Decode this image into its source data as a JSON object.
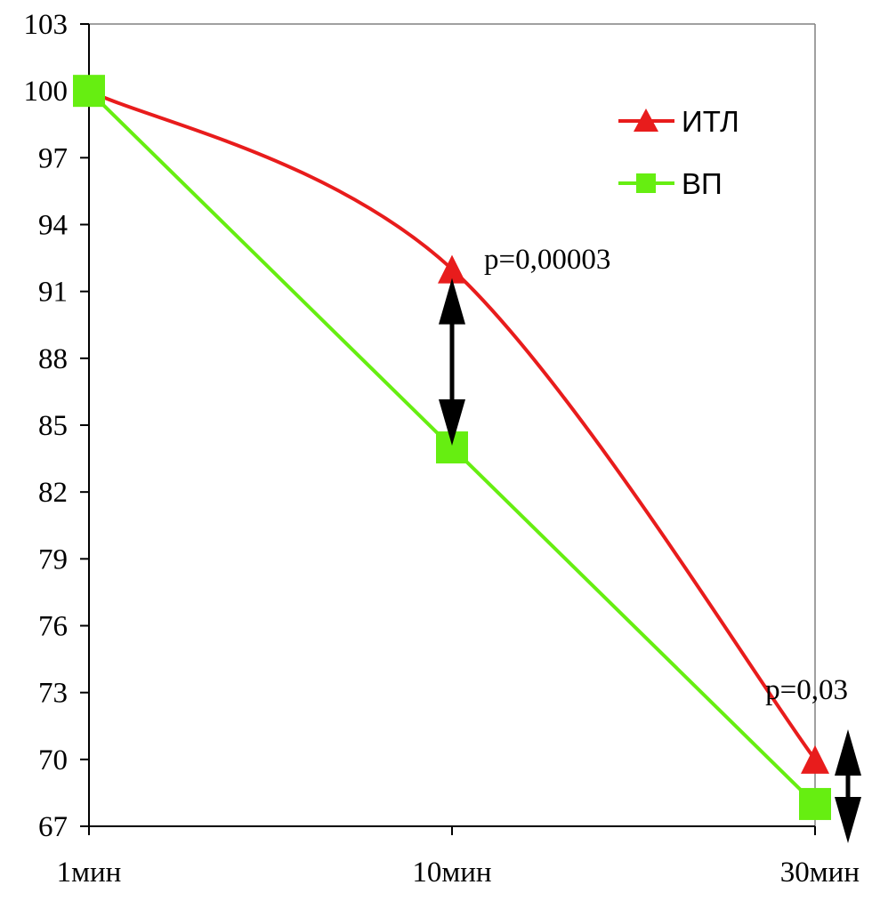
{
  "chart_data": {
    "type": "line",
    "categories": [
      "1мин",
      "10мин",
      "30мин"
    ],
    "ylim": [
      67,
      103
    ],
    "yticks": [
      67,
      70,
      73,
      76,
      79,
      82,
      85,
      88,
      91,
      94,
      97,
      100,
      103
    ],
    "grid": false,
    "legend_position": "top-right",
    "series": [
      {
        "name": "ИТЛ",
        "values": [
          100,
          92,
          70
        ],
        "color": "#e81c1c",
        "marker": "triangle",
        "smooth": true
      },
      {
        "name": "ВП",
        "values": [
          100,
          84,
          68
        ],
        "color": "#66ee11",
        "marker": "square",
        "smooth": false
      }
    ],
    "annotations": [
      {
        "text": "p=0,00003",
        "category": "10мин",
        "range": [
          84,
          92
        ]
      },
      {
        "text": "p=0,03",
        "category": "30мин",
        "range": [
          68,
          70
        ]
      }
    ]
  }
}
